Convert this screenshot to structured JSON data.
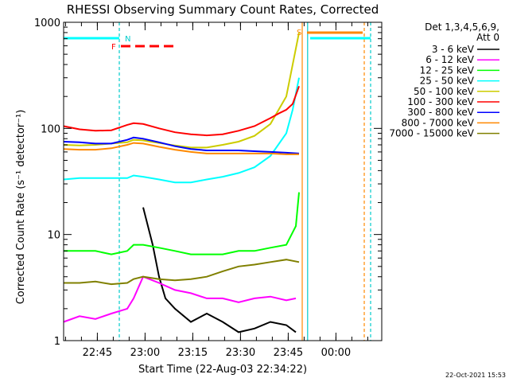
{
  "chart_data": {
    "type": "line",
    "title": "RHESSI Observing Summary Count Rates, Corrected",
    "xlabel": "Start Time (22-Aug-03 22:34:22)",
    "ylabel": "Corrected Count Rate (s⁻¹ detector⁻¹)",
    "yscale": "log",
    "ylim": [
      1,
      1000
    ],
    "xlim": [
      "22:34:22",
      "00:14:00"
    ],
    "yticks": [
      "1",
      "10",
      "100",
      "1000"
    ],
    "xticks": [
      "22:45",
      "23:00",
      "23:15",
      "23:30",
      "23:45",
      "00:00"
    ],
    "legend_title": [
      "Det 1,3,4,5,6,9,",
      "Att 0"
    ],
    "legend_position": "right",
    "footer": "22-Oct-2021 15:53",
    "flags": {
      "N": "N",
      "F": "F",
      "S": "S"
    },
    "time_axis_minutes": [
      0,
      15,
      30,
      45,
      60,
      75,
      90
    ],
    "series": [
      {
        "name": "3 - 6 keV",
        "color": "#000000",
        "x": [
          20,
          22,
          25,
          28,
          30,
          32,
          35,
          40,
          45,
          50,
          55,
          60,
          65,
          70,
          73
        ],
        "y": [
          null,
          null,
          18,
          8,
          4,
          2.5,
          2,
          1.5,
          1.8,
          1.5,
          1.2,
          1.3,
          1.5,
          1.4,
          1.2
        ]
      },
      {
        "name": "6 - 12 keV",
        "color": "#ff00ff",
        "x": [
          0,
          5,
          10,
          15,
          20,
          22,
          25,
          30,
          35,
          40,
          45,
          50,
          55,
          60,
          65,
          70,
          73
        ],
        "y": [
          1.5,
          1.7,
          1.6,
          1.8,
          2.0,
          2.5,
          4.0,
          3.5,
          3.0,
          2.8,
          2.5,
          2.5,
          2.3,
          2.5,
          2.6,
          2.4,
          2.5
        ]
      },
      {
        "name": "12 - 25 keV",
        "color": "#00ff00",
        "x": [
          0,
          5,
          10,
          15,
          20,
          22,
          25,
          30,
          35,
          40,
          45,
          50,
          55,
          60,
          65,
          70,
          73,
          74
        ],
        "y": [
          7,
          7,
          7,
          6.5,
          7,
          8,
          8,
          7.5,
          7,
          6.5,
          6.5,
          6.5,
          7,
          7,
          7.5,
          8,
          12,
          25
        ]
      },
      {
        "name": "25 - 50 keV",
        "color": "#00ffff",
        "x": [
          0,
          5,
          10,
          15,
          20,
          22,
          25,
          30,
          35,
          40,
          45,
          50,
          55,
          60,
          65,
          70,
          72,
          74
        ],
        "y": [
          33,
          34,
          34,
          34,
          34,
          36,
          35,
          33,
          31,
          31,
          33,
          35,
          38,
          43,
          55,
          90,
          150,
          300
        ]
      },
      {
        "name": "50 - 100 keV",
        "color": "#cccc00",
        "x": [
          0,
          5,
          10,
          15,
          20,
          22,
          25,
          30,
          35,
          40,
          45,
          50,
          55,
          60,
          65,
          70,
          72,
          74
        ],
        "y": [
          70,
          69,
          70,
          72,
          74,
          78,
          77,
          73,
          69,
          66,
          66,
          70,
          75,
          85,
          110,
          200,
          400,
          800
        ]
      },
      {
        "name": "100 - 300 keV",
        "color": "#ff0000",
        "x": [
          0,
          5,
          10,
          15,
          20,
          22,
          25,
          30,
          35,
          40,
          45,
          50,
          55,
          60,
          65,
          68,
          70,
          72,
          74
        ],
        "y": [
          105,
          98,
          95,
          96,
          108,
          112,
          110,
          100,
          92,
          88,
          86,
          88,
          95,
          105,
          125,
          140,
          150,
          170,
          250
        ]
      },
      {
        "name": "300 - 800 keV",
        "color": "#0000ff",
        "x": [
          0,
          5,
          10,
          15,
          20,
          22,
          25,
          30,
          35,
          40,
          45,
          50,
          55,
          60,
          65,
          70,
          74
        ],
        "y": [
          75,
          74,
          72,
          72,
          78,
          82,
          80,
          74,
          68,
          64,
          62,
          62,
          62,
          61,
          60,
          59,
          58
        ]
      },
      {
        "name": "800 - 7000 keV",
        "color": "#ff8800",
        "x": [
          0,
          5,
          10,
          15,
          20,
          22,
          25,
          30,
          35,
          40,
          45,
          50,
          55,
          60,
          65,
          70,
          74
        ],
        "y": [
          64,
          63,
          63,
          65,
          70,
          73,
          72,
          67,
          63,
          60,
          58,
          58,
          58,
          58,
          58,
          57,
          57
        ]
      },
      {
        "name": "7000 - 15000 keV",
        "color": "#808000",
        "x": [
          0,
          5,
          10,
          15,
          20,
          22,
          25,
          30,
          35,
          40,
          45,
          50,
          55,
          60,
          65,
          70,
          74
        ],
        "y": [
          3.5,
          3.5,
          3.6,
          3.4,
          3.5,
          3.8,
          4.0,
          3.8,
          3.7,
          3.8,
          4.0,
          4.5,
          5.0,
          5.2,
          5.5,
          5.8,
          5.5
        ]
      }
    ]
  }
}
